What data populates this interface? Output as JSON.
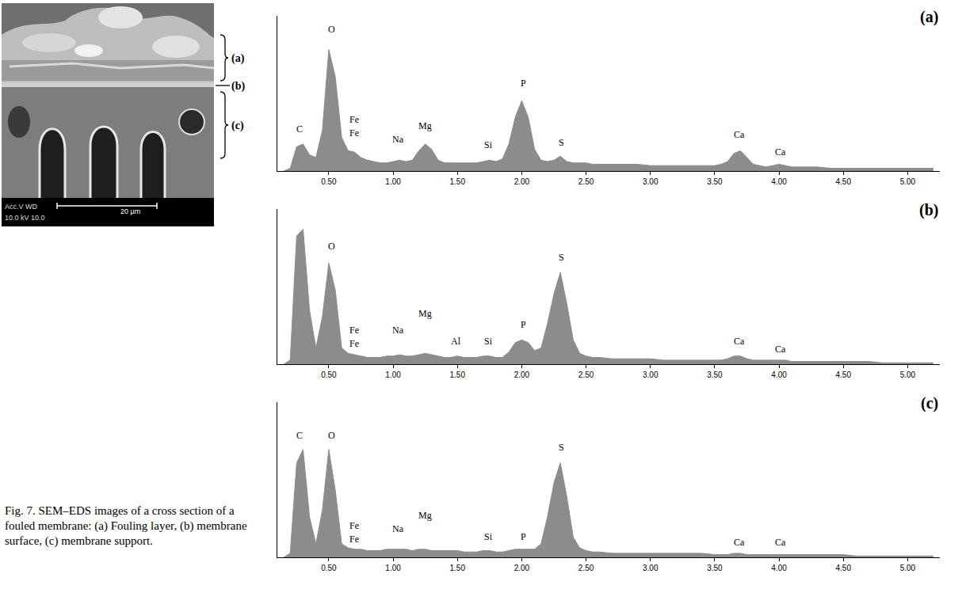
{
  "sem_image": {
    "labels": [
      "(a)",
      "(b)",
      "(c)"
    ],
    "info": [
      "Acc.V  WD",
      "10.0 kV  10.0"
    ],
    "scale_bar": "20 µm"
  },
  "caption": "Fig. 7. SEM–EDS images of a cross section of a fouled membrane: (a) Fouling layer, (b) membrane surface, (c) membrane support.",
  "chart_data": [
    {
      "type": "area",
      "title": "(a)",
      "color": "#8c8c8c",
      "grid": false,
      "tick_labels": "x",
      "xlim": [
        0.1,
        5.25
      ],
      "xticks": [
        {
          "value": 0.5,
          "label": "0.50"
        },
        {
          "value": 1,
          "label": "1.00"
        },
        {
          "value": 1.5,
          "label": "1.50"
        },
        {
          "value": 2,
          "label": "2.00"
        },
        {
          "value": 2.5,
          "label": "2.50"
        },
        {
          "value": 3,
          "label": "3.00"
        },
        {
          "value": 3.5,
          "label": "3.50"
        },
        {
          "value": 4,
          "label": "4.00"
        },
        {
          "value": 4.5,
          "label": "4.50"
        },
        {
          "value": 5,
          "label": "5.00"
        }
      ],
      "ylim": [
        0,
        115
      ],
      "x": [
        0.15,
        0.2,
        0.25,
        0.3,
        0.35,
        0.4,
        0.45,
        0.5,
        0.55,
        0.6,
        0.65,
        0.7,
        0.75,
        0.8,
        0.85,
        0.9,
        0.95,
        1.0,
        1.05,
        1.1,
        1.15,
        1.2,
        1.25,
        1.3,
        1.35,
        1.4,
        1.45,
        1.5,
        1.55,
        1.6,
        1.65,
        1.7,
        1.75,
        1.8,
        1.85,
        1.9,
        1.95,
        2.0,
        2.05,
        2.1,
        2.15,
        2.2,
        2.25,
        2.3,
        2.35,
        2.4,
        2.45,
        2.5,
        2.55,
        2.6,
        2.7,
        2.8,
        2.9,
        3.0,
        3.1,
        3.2,
        3.3,
        3.4,
        3.5,
        3.55,
        3.6,
        3.65,
        3.7,
        3.75,
        3.8,
        3.85,
        3.9,
        3.95,
        4.0,
        4.05,
        4.1,
        4.2,
        4.3,
        4.4,
        4.5,
        4.6,
        4.7,
        4.8,
        4.9,
        5.0,
        5.1,
        5.2
      ],
      "values": [
        0,
        2,
        18,
        20,
        12,
        10,
        30,
        90,
        70,
        25,
        15,
        14,
        10,
        8,
        7,
        6,
        6,
        7,
        8,
        7,
        8,
        15,
        20,
        16,
        8,
        6,
        6,
        6,
        6,
        6,
        6,
        7,
        8,
        7,
        9,
        20,
        40,
        52,
        40,
        16,
        8,
        7,
        8,
        11,
        7,
        6,
        6,
        6,
        5,
        5,
        5,
        5,
        5,
        4,
        4,
        4,
        4,
        4,
        4,
        5,
        7,
        13,
        15,
        10,
        5,
        4,
        3,
        4,
        5,
        4,
        3,
        3,
        3,
        2,
        2,
        2,
        2,
        2,
        2,
        2,
        2,
        2
      ],
      "annotations": [
        {
          "text": "C",
          "x": 0.27,
          "y": 26
        },
        {
          "text": "O",
          "x": 0.52,
          "y": 100
        },
        {
          "text": "Fe",
          "x": 0.7,
          "y": 33
        },
        {
          "text": "Fe",
          "x": 0.7,
          "y": 23
        },
        {
          "text": "Na",
          "x": 1.04,
          "y": 18
        },
        {
          "text": "Mg",
          "x": 1.25,
          "y": 28
        },
        {
          "text": "Si",
          "x": 1.74,
          "y": 14
        },
        {
          "text": "P",
          "x": 2.01,
          "y": 60
        },
        {
          "text": "S",
          "x": 2.31,
          "y": 16
        },
        {
          "text": "Ca",
          "x": 3.69,
          "y": 22
        },
        {
          "text": "Ca",
          "x": 4.01,
          "y": 9
        }
      ]
    },
    {
      "type": "area",
      "title": "(b)",
      "color": "#8c8c8c",
      "grid": false,
      "tick_labels": "x",
      "xlim": [
        0.1,
        5.25
      ],
      "xticks": [
        {
          "value": 0.5,
          "label": "0.50"
        },
        {
          "value": 1,
          "label": "1.00"
        },
        {
          "value": 1.5,
          "label": "1.50"
        },
        {
          "value": 2,
          "label": "2.00"
        },
        {
          "value": 2.5,
          "label": "2.50"
        },
        {
          "value": 3,
          "label": "3.00"
        },
        {
          "value": 3.5,
          "label": "3.50"
        },
        {
          "value": 4,
          "label": "4.00"
        },
        {
          "value": 4.5,
          "label": "4.50"
        },
        {
          "value": 5,
          "label": "5.00"
        }
      ],
      "ylim": [
        0,
        115
      ],
      "x": [
        0.15,
        0.2,
        0.25,
        0.3,
        0.35,
        0.4,
        0.45,
        0.5,
        0.55,
        0.6,
        0.65,
        0.7,
        0.75,
        0.8,
        0.85,
        0.9,
        0.95,
        1.0,
        1.05,
        1.1,
        1.15,
        1.2,
        1.25,
        1.3,
        1.35,
        1.4,
        1.45,
        1.5,
        1.55,
        1.6,
        1.65,
        1.7,
        1.75,
        1.8,
        1.85,
        1.9,
        1.95,
        2.0,
        2.05,
        2.1,
        2.15,
        2.2,
        2.25,
        2.3,
        2.35,
        2.4,
        2.45,
        2.5,
        2.55,
        2.6,
        2.7,
        2.8,
        2.9,
        3.0,
        3.1,
        3.2,
        3.3,
        3.4,
        3.5,
        3.55,
        3.6,
        3.65,
        3.7,
        3.75,
        3.8,
        3.85,
        3.9,
        3.95,
        4.0,
        4.05,
        4.1,
        4.2,
        4.3,
        4.4,
        4.5,
        4.6,
        4.7,
        4.8,
        4.9,
        5.0,
        5.1,
        5.2
      ],
      "values": [
        0,
        3,
        95,
        100,
        40,
        12,
        35,
        75,
        55,
        12,
        8,
        7,
        6,
        5,
        5,
        5,
        6,
        6,
        7,
        6,
        6,
        7,
        8,
        7,
        6,
        5,
        5,
        6,
        5,
        5,
        5,
        6,
        6,
        5,
        5,
        9,
        16,
        18,
        16,
        10,
        12,
        30,
        52,
        68,
        45,
        18,
        8,
        6,
        5,
        5,
        4,
        4,
        4,
        4,
        3,
        3,
        3,
        3,
        3,
        3,
        4,
        6,
        6,
        4,
        3,
        3,
        3,
        3,
        3,
        3,
        2,
        2,
        2,
        2,
        2,
        2,
        2,
        1,
        1,
        1,
        1,
        1
      ],
      "annotations": [
        {
          "text": "O",
          "x": 0.52,
          "y": 82
        },
        {
          "text": "Fe",
          "x": 0.7,
          "y": 20
        },
        {
          "text": "Fe",
          "x": 0.7,
          "y": 10
        },
        {
          "text": "Na",
          "x": 1.04,
          "y": 20
        },
        {
          "text": "Mg",
          "x": 1.25,
          "y": 32
        },
        {
          "text": "Al",
          "x": 1.49,
          "y": 12
        },
        {
          "text": "Si",
          "x": 1.74,
          "y": 12
        },
        {
          "text": "P",
          "x": 2.01,
          "y": 24
        },
        {
          "text": "S",
          "x": 2.31,
          "y": 74
        },
        {
          "text": "Ca",
          "x": 3.69,
          "y": 12
        },
        {
          "text": "Ca",
          "x": 4.01,
          "y": 6
        }
      ]
    },
    {
      "type": "area",
      "title": "(c)",
      "color": "#8c8c8c",
      "grid": false,
      "tick_labels": "x",
      "xlim": [
        0.1,
        5.25
      ],
      "xticks": [
        {
          "value": 0.5,
          "label": "0.50"
        },
        {
          "value": 1,
          "label": "1.00"
        },
        {
          "value": 1.5,
          "label": "1.50"
        },
        {
          "value": 2,
          "label": "2.00"
        },
        {
          "value": 2.5,
          "label": "2.50"
        },
        {
          "value": 3,
          "label": "3.00"
        },
        {
          "value": 3.5,
          "label": "3.50"
        },
        {
          "value": 4,
          "label": "4.00"
        },
        {
          "value": 4.5,
          "label": "4.50"
        },
        {
          "value": 5,
          "label": "5.00"
        }
      ],
      "ylim": [
        0,
        115
      ],
      "x": [
        0.15,
        0.2,
        0.25,
        0.3,
        0.35,
        0.4,
        0.45,
        0.5,
        0.55,
        0.6,
        0.65,
        0.7,
        0.75,
        0.8,
        0.85,
        0.9,
        0.95,
        1.0,
        1.05,
        1.1,
        1.15,
        1.2,
        1.25,
        1.3,
        1.35,
        1.4,
        1.45,
        1.5,
        1.55,
        1.6,
        1.65,
        1.7,
        1.75,
        1.8,
        1.85,
        1.9,
        1.95,
        2.0,
        2.05,
        2.1,
        2.15,
        2.2,
        2.25,
        2.3,
        2.35,
        2.4,
        2.45,
        2.5,
        2.55,
        2.6,
        2.7,
        2.8,
        2.9,
        3.0,
        3.1,
        3.2,
        3.3,
        3.4,
        3.5,
        3.55,
        3.6,
        3.65,
        3.7,
        3.75,
        3.8,
        3.85,
        3.9,
        3.95,
        4.0,
        4.05,
        4.1,
        4.2,
        4.3,
        4.4,
        4.5,
        4.6,
        4.7,
        4.8,
        4.9,
        5.0,
        5.1,
        5.2
      ],
      "values": [
        0,
        3,
        70,
        80,
        30,
        10,
        35,
        80,
        50,
        10,
        7,
        6,
        6,
        5,
        5,
        5,
        6,
        6,
        6,
        6,
        5,
        6,
        6,
        5,
        5,
        5,
        5,
        5,
        4,
        4,
        4,
        5,
        5,
        4,
        4,
        5,
        6,
        6,
        6,
        6,
        10,
        30,
        55,
        70,
        45,
        15,
        7,
        5,
        4,
        4,
        3,
        3,
        3,
        3,
        3,
        3,
        3,
        3,
        2,
        2,
        2,
        3,
        3,
        2,
        2,
        2,
        2,
        2,
        2,
        2,
        2,
        2,
        2,
        2,
        2,
        1,
        1,
        1,
        1,
        1,
        1,
        1
      ],
      "annotations": [
        {
          "text": "C",
          "x": 0.27,
          "y": 85
        },
        {
          "text": "O",
          "x": 0.52,
          "y": 85
        },
        {
          "text": "Fe",
          "x": 0.7,
          "y": 18
        },
        {
          "text": "Fe",
          "x": 0.7,
          "y": 8
        },
        {
          "text": "Na",
          "x": 1.04,
          "y": 16
        },
        {
          "text": "Mg",
          "x": 1.25,
          "y": 26
        },
        {
          "text": "Si",
          "x": 1.74,
          "y": 10
        },
        {
          "text": "P",
          "x": 2.01,
          "y": 10
        },
        {
          "text": "S",
          "x": 2.31,
          "y": 76
        },
        {
          "text": "Ca",
          "x": 3.69,
          "y": 6
        },
        {
          "text": "Ca",
          "x": 4.01,
          "y": 6
        }
      ]
    }
  ]
}
